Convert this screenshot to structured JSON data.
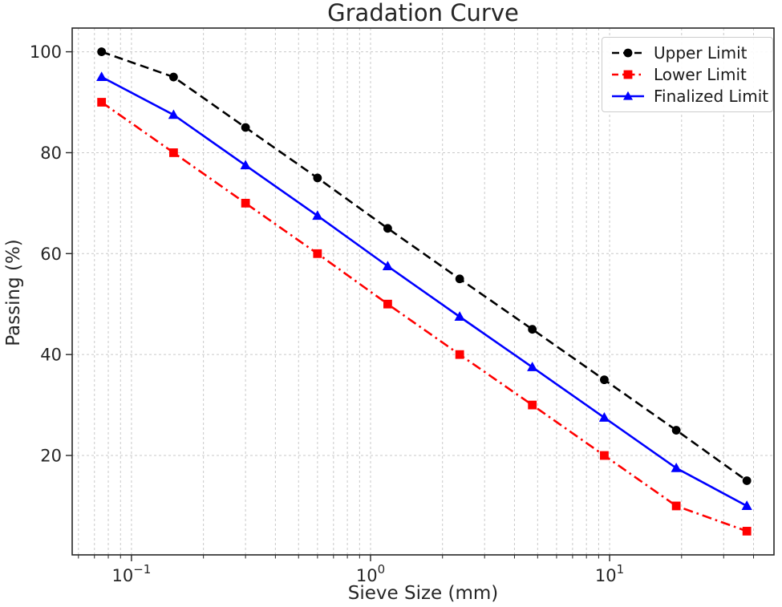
{
  "chart_data": {
    "type": "line",
    "title": "Gradation Curve",
    "xlabel": "Sieve Size (mm)",
    "ylabel": "Passing (%)",
    "x_scale": "log",
    "grid": true,
    "legend_position": "upper right",
    "x": [
      0.075,
      0.15,
      0.3,
      0.6,
      1.18,
      2.36,
      4.75,
      9.5,
      19,
      37.5
    ],
    "series": [
      {
        "label": "Upper Limit",
        "color": "#000000",
        "linestyle": "dashed",
        "marker": "circle",
        "values": [
          100,
          95,
          85,
          75,
          65,
          55,
          45,
          35,
          25,
          15
        ]
      },
      {
        "label": "Lower Limit",
        "color": "#ff0000",
        "linestyle": "dashdot",
        "marker": "square",
        "values": [
          90,
          80,
          70,
          60,
          50,
          40,
          30,
          20,
          10,
          5
        ]
      },
      {
        "label": "Finalized Limit",
        "color": "#0000ff",
        "linestyle": "solid",
        "marker": "triangle",
        "values": [
          95,
          87.5,
          77.5,
          67.5,
          57.5,
          47.5,
          37.5,
          27.5,
          17.5,
          10
        ]
      }
    ],
    "xlim": [
      0.0565,
      48.7
    ],
    "ylim": [
      0.3,
      104.7
    ],
    "y_ticks": [
      20,
      40,
      60,
      80,
      100
    ],
    "x_major_ticks": [
      {
        "value": 0.1,
        "base": "10",
        "exp": "−1"
      },
      {
        "value": 1,
        "base": "10",
        "exp": "0"
      },
      {
        "value": 10,
        "base": "10",
        "exp": "1"
      }
    ],
    "colors": {
      "grid": "#c9c9c9",
      "spine": "#262626",
      "tick": "#262626",
      "text": "#262626",
      "legend_border": "#cccccc",
      "legend_bg": "#ffffff"
    }
  }
}
